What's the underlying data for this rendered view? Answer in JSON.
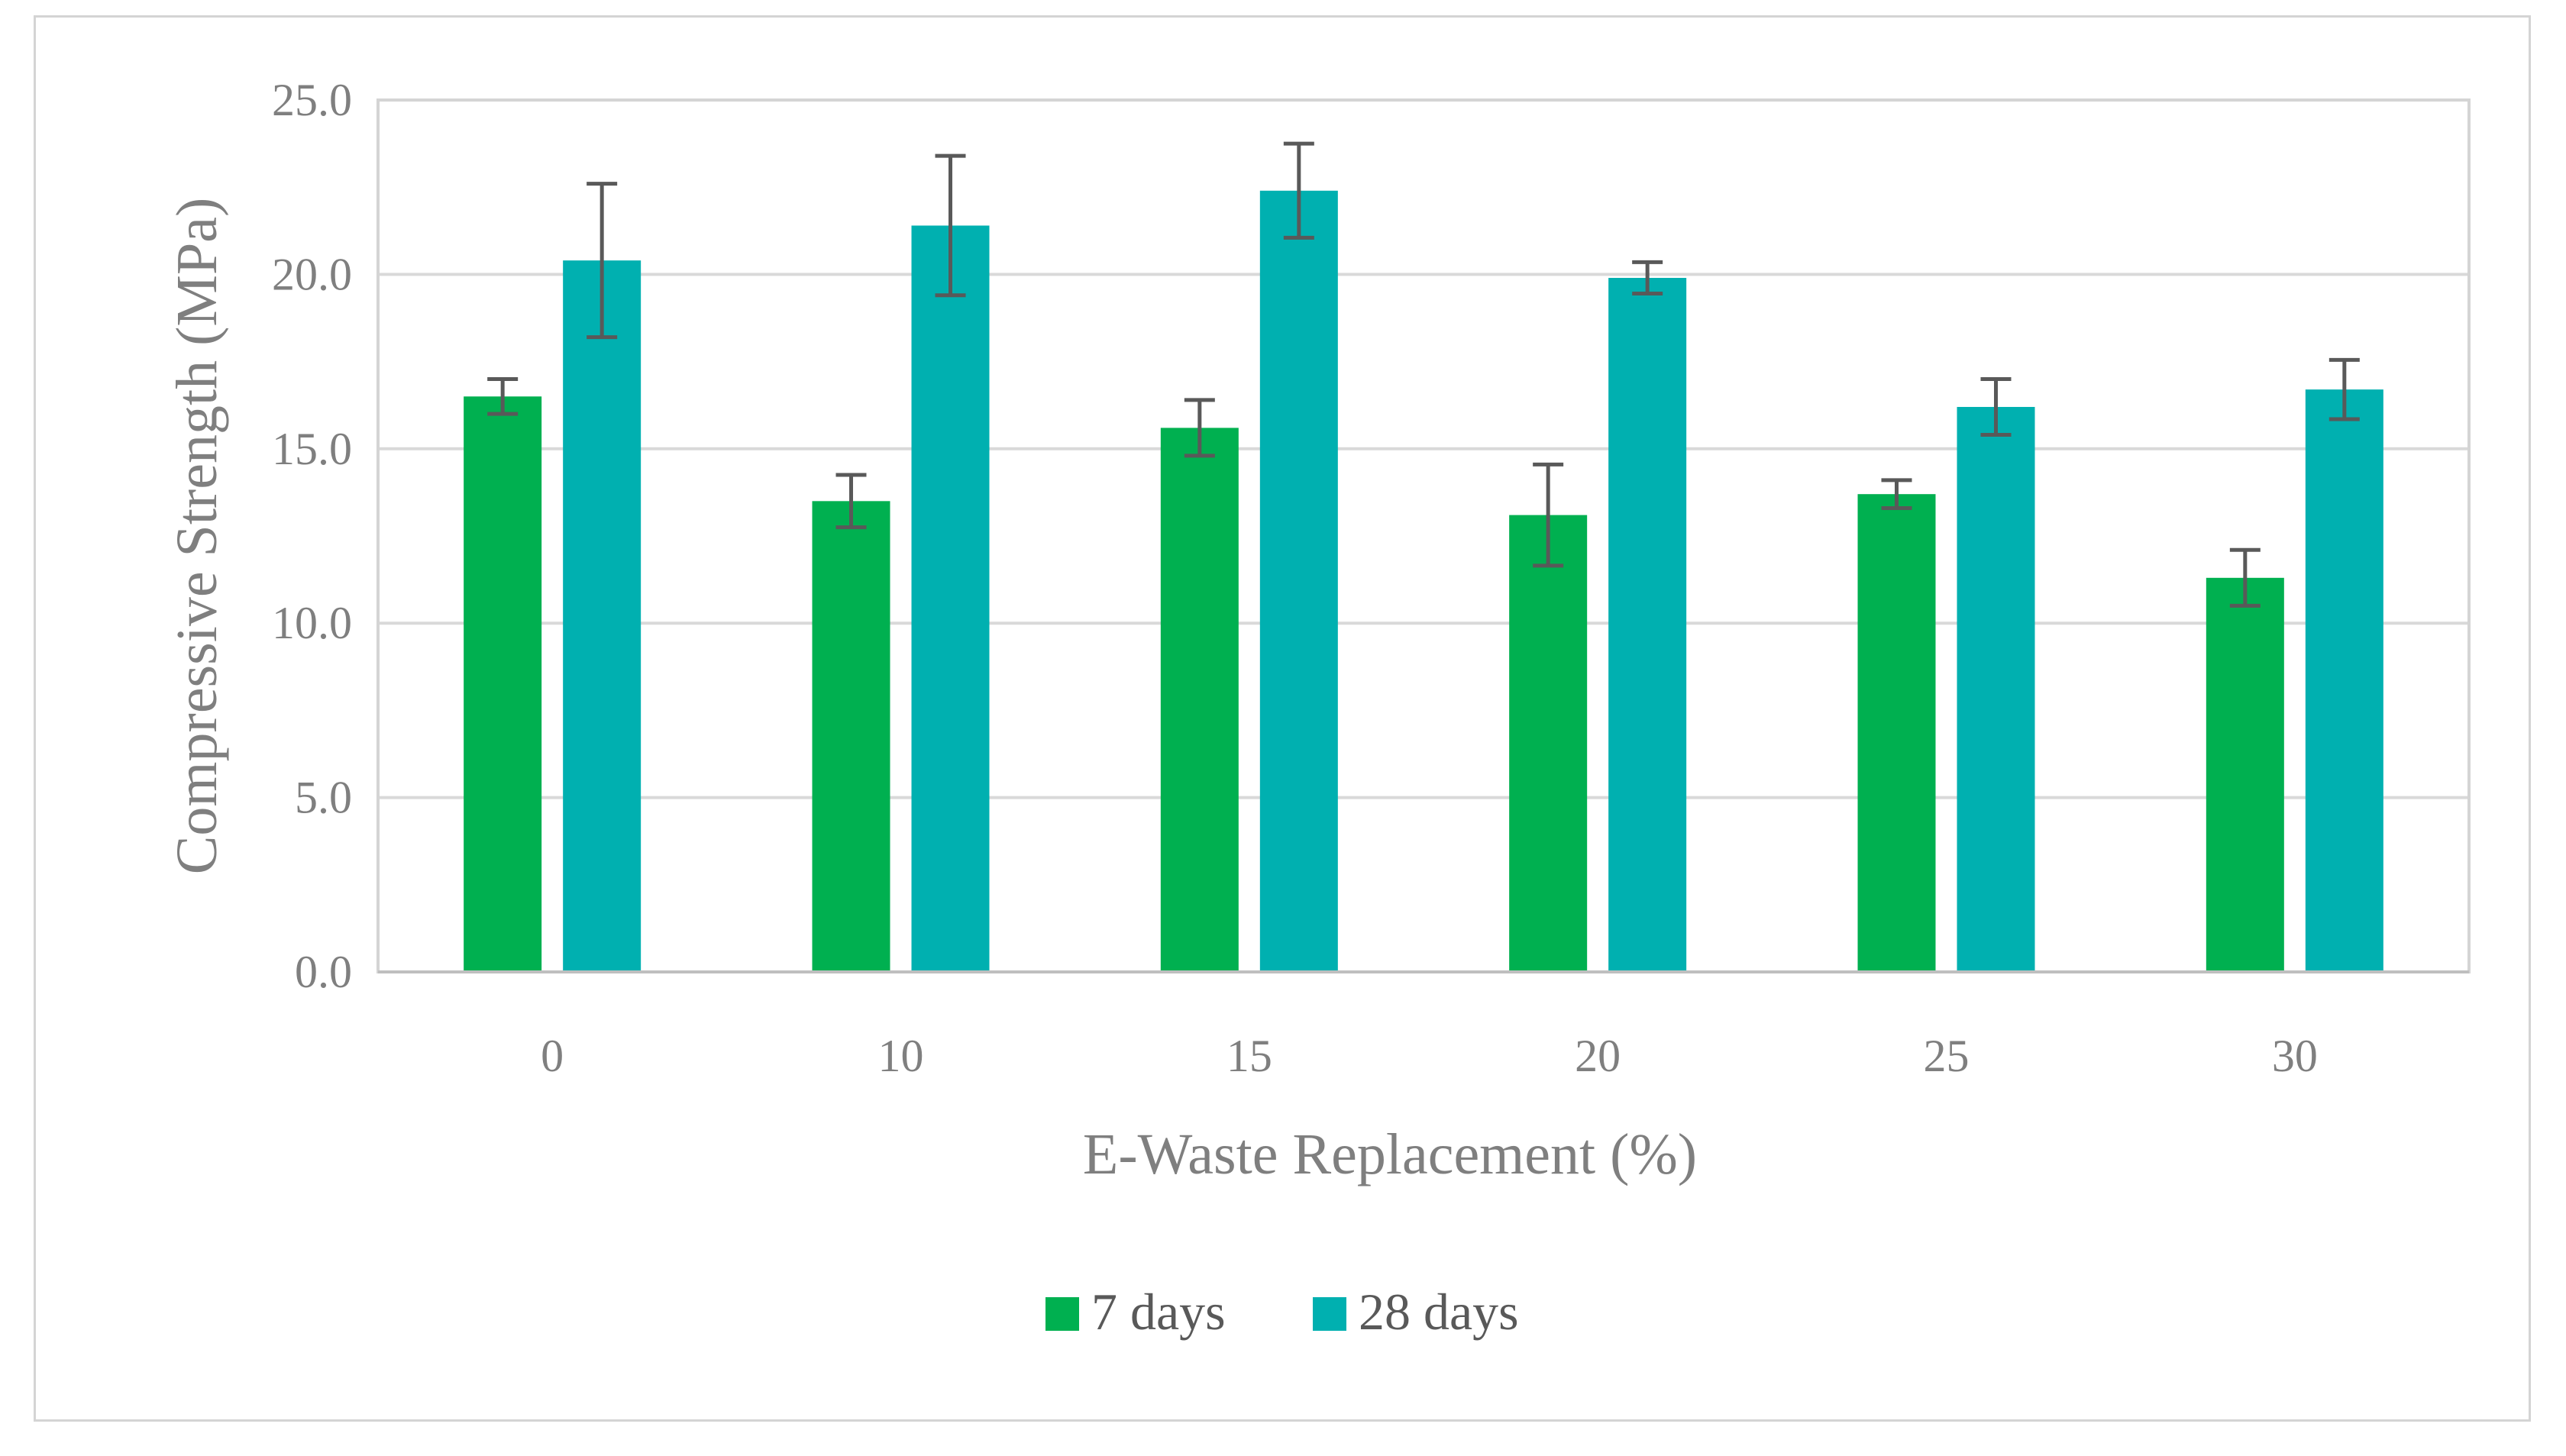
{
  "chart_data": {
    "type": "bar",
    "title": "",
    "xlabel": "E-Waste Replacement (%)",
    "ylabel": "Compressive Strength (MPa)",
    "categories": [
      "0",
      "10",
      "15",
      "20",
      "25",
      "30"
    ],
    "ylim": [
      0,
      25
    ],
    "yticks": [
      "0.0",
      "5.0",
      "10.0",
      "15.0",
      "20.0",
      "25.0"
    ],
    "grid": true,
    "legend_position": "bottom",
    "series": [
      {
        "name": "7 days",
        "color": "#00b050",
        "values": [
          16.5,
          13.5,
          15.6,
          13.1,
          13.7,
          11.3
        ],
        "error": [
          0.5,
          0.75,
          0.8,
          1.45,
          0.4,
          0.8
        ]
      },
      {
        "name": "28 days",
        "color": "#00b0b0",
        "values": [
          20.4,
          21.4,
          22.4,
          19.9,
          16.2,
          16.7
        ],
        "error": [
          2.2,
          2.0,
          1.35,
          0.45,
          0.8,
          0.85
        ]
      }
    ],
    "error_bar_color": "#595959"
  }
}
